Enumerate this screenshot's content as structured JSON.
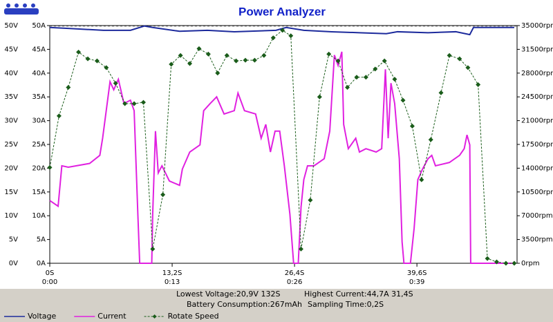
{
  "chart_data": {
    "type": "line",
    "title": "Power Analyzer",
    "xlim": [
      0,
      50.4
    ],
    "xticks": [
      {
        "value": 0,
        "label": "0S"
      },
      {
        "value": 13.2,
        "label": "13,2S"
      },
      {
        "value": 26.4,
        "label": "26,4S"
      },
      {
        "value": 39.6,
        "label": "39,6S"
      }
    ],
    "xtick_time_labels": [
      "0:00",
      "0:13",
      "0:26",
      "0:39"
    ],
    "ylim": [
      0,
      50
    ],
    "yticks": [
      {
        "value": 0,
        "label": "0V"
      },
      {
        "value": 5,
        "label": "5V"
      },
      {
        "value": 10,
        "label": "10V"
      },
      {
        "value": 15,
        "label": "15V"
      },
      {
        "value": 20,
        "label": "20V"
      },
      {
        "value": 25,
        "label": "25V"
      },
      {
        "value": 30,
        "label": "30V"
      },
      {
        "value": 35,
        "label": "35V"
      },
      {
        "value": 40,
        "label": "40V"
      },
      {
        "value": 45,
        "label": "45V"
      },
      {
        "value": 50,
        "label": "50V"
      }
    ],
    "yticks_current": [
      {
        "value": 0,
        "label": "0A"
      },
      {
        "value": 5,
        "label": "5A"
      },
      {
        "value": 10,
        "label": "10A"
      },
      {
        "value": 15,
        "label": "15A"
      },
      {
        "value": 20,
        "label": "20A"
      },
      {
        "value": 25,
        "label": "25A"
      },
      {
        "value": 30,
        "label": "30A"
      },
      {
        "value": 35,
        "label": "35A"
      },
      {
        "value": 40,
        "label": "40A"
      },
      {
        "value": 45,
        "label": "45A"
      },
      {
        "value": 50,
        "label": "50A"
      }
    ],
    "y2lim": [
      0,
      35000
    ],
    "y2ticks": [
      {
        "value": 0,
        "label": "0rpm"
      },
      {
        "value": 3500,
        "label": "3500rpm"
      },
      {
        "value": 7000,
        "label": "7000rpm"
      },
      {
        "value": 10500,
        "label": "10500rpm"
      },
      {
        "value": 14000,
        "label": "14000rpm"
      },
      {
        "value": 17500,
        "label": "17500rpm"
      },
      {
        "value": 21000,
        "label": "21000rpm"
      },
      {
        "value": 24500,
        "label": "24500rpm"
      },
      {
        "value": 28000,
        "label": "28000rpm"
      },
      {
        "value": 31500,
        "label": "31500rpm"
      },
      {
        "value": 35000,
        "label": "35000rpm"
      }
    ],
    "legend": "bottom-left",
    "stats": [
      "Lowest Voltage:20,9V 132S",
      "Highest Current:44,7A 31,4S",
      "Battery Consumption:267mAh",
      "Sampling Time:0,2S"
    ],
    "series": [
      {
        "name": "Voltage",
        "color": "#1c2a9c",
        "line_style": "solid",
        "x": [
          0,
          2,
          5.8,
          8.7,
          10.2,
          11.1,
          14,
          17,
          19.9,
          24.4,
          25.5,
          27.4,
          30.4,
          33.4,
          36.3,
          37.5,
          40.8,
          43.8,
          45.3,
          45.7,
          50.1
        ],
        "values": [
          49.6,
          49.4,
          49,
          49,
          49.9,
          49.6,
          48.8,
          49,
          48.7,
          49,
          49.6,
          49,
          48.7,
          48.5,
          48.3,
          48.7,
          48.5,
          48.7,
          48.1,
          49.6,
          49.6
        ]
      },
      {
        "name": "Current",
        "color": "#e020e0",
        "line_style": "solid",
        "x": [
          0,
          0.9,
          1.3,
          2.0,
          4.3,
          5.4,
          5.7,
          6.5,
          6.9,
          7.4,
          8.0,
          8.7,
          9.1,
          9.5,
          9.7,
          11.0,
          11.1,
          11.4,
          11.7,
          12.1,
          12.9,
          14.0,
          14.3,
          15.1,
          16.2,
          16.6,
          17.3,
          18.0,
          18.8,
          19.9,
          20.3,
          21.0,
          22.2,
          22.8,
          23.3,
          23.8,
          24.3,
          24.8,
          25.3,
          25.9,
          26.3,
          26.8,
          27.1,
          27.4,
          27.8,
          28.5,
          29.6,
          30.2,
          30.7,
          31.1,
          31.5,
          31.7,
          32.2,
          33.0,
          33.4,
          34.1,
          35.2,
          35.8,
          36.2,
          36.5,
          36.8,
          37.2,
          37.7,
          38.0,
          38.2,
          38.9,
          39.3,
          39.7,
          40.2,
          40.8,
          41.2,
          41.6,
          43.1,
          44.2,
          44.7,
          45.0,
          45.3,
          45.4,
          50.1
        ],
        "values": [
          13.2,
          12,
          20.5,
          20.2,
          21,
          22.7,
          26.3,
          38.2,
          36.5,
          38.7,
          33.6,
          34.3,
          32.1,
          10.3,
          0,
          0,
          10.3,
          27.8,
          19,
          20.5,
          17.3,
          16.4,
          19.8,
          23.4,
          24.9,
          32.1,
          33.6,
          35,
          31.4,
          32.1,
          35.8,
          32.1,
          31.4,
          26.3,
          29.2,
          23.4,
          27.8,
          27.8,
          20.5,
          10.3,
          0,
          0,
          11.8,
          17.6,
          20.5,
          20.5,
          22,
          27.8,
          43.8,
          41.6,
          44.5,
          29.2,
          24.1,
          26.3,
          23.4,
          24.1,
          23.4,
          24.1,
          40.8,
          26.3,
          37.9,
          33.6,
          22,
          4.5,
          0,
          0,
          7.4,
          17.6,
          19.8,
          22,
          22.7,
          20.5,
          21.2,
          22.7,
          24.1,
          27,
          24.9,
          0,
          0
        ]
      },
      {
        "name": "Rotate Speed",
        "color": "#1a5c1a",
        "line_style": "dashed",
        "marker": "diamond",
        "axis": "y2",
        "x": [
          0,
          1.0,
          2.0,
          3.1,
          4.1,
          5.1,
          6.1,
          7.1,
          8.1,
          9.1,
          10.1,
          11.1,
          12.2,
          13.1,
          14.1,
          15.1,
          16.1,
          17.1,
          18.1,
          19.1,
          20.1,
          21.1,
          22.1,
          23.1,
          24.1,
          25.1,
          26.0,
          27.1,
          28.1,
          29.1,
          30.1,
          31.1,
          32.1,
          33.1,
          34.1,
          35.1,
          36.1,
          37.2,
          38.1,
          39.1,
          40.1,
          41.1,
          42.2,
          43.1,
          44.2,
          45.1,
          46.2,
          47.2,
          48.2,
          49.2,
          50.1
        ],
        "values": [
          14100,
          21700,
          25900,
          31100,
          30100,
          29800,
          28800,
          26500,
          23500,
          23500,
          23700,
          2100,
          10100,
          29300,
          30600,
          29400,
          31600,
          30800,
          28000,
          30600,
          29800,
          29900,
          29900,
          30600,
          33200,
          34300,
          33500,
          2100,
          9300,
          24500,
          30800,
          29800,
          25900,
          27400,
          27400,
          28600,
          29800,
          27100,
          24000,
          20200,
          12300,
          18200,
          25100,
          30600,
          30100,
          28800,
          26300,
          700,
          200,
          0,
          0
        ]
      }
    ]
  }
}
